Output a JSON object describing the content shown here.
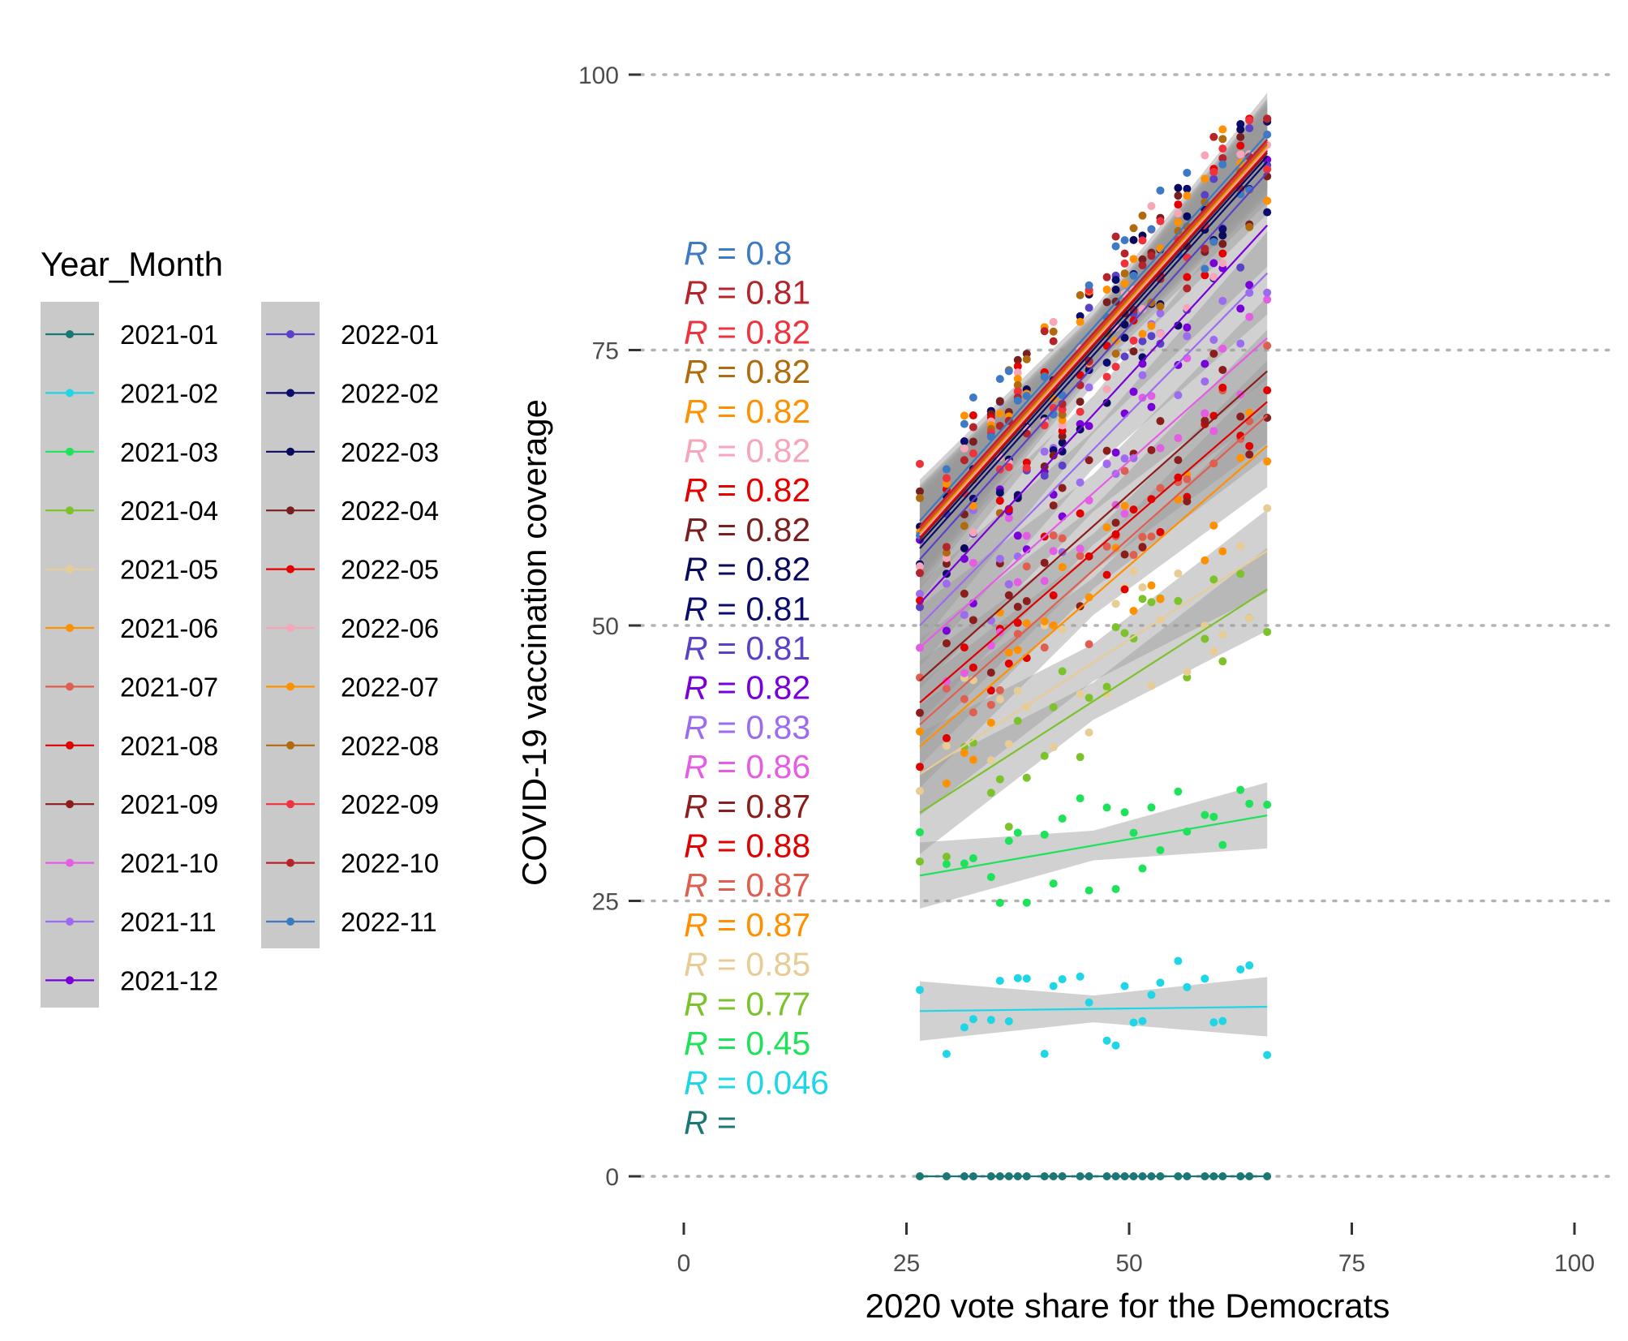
{
  "chart_data": {
    "type": "scatter",
    "title": "",
    "xlabel": "2020 vote share for the Democrats",
    "ylabel": "COVID-19 vaccination coverage",
    "xlim": [
      0,
      100
    ],
    "ylim": [
      0,
      100
    ],
    "x_ticks": [
      "0",
      "25",
      "50",
      "75",
      "100"
    ],
    "y_ticks": [
      "0",
      "25",
      "50",
      "75",
      "100"
    ],
    "grid": "horizontal dotted",
    "legend": {
      "title": "Year_Month",
      "placement": "left",
      "columns": 2
    },
    "x_range": [
      26.5,
      65.5
    ],
    "series": [
      {
        "name": "2021-01",
        "color": "#1b7773",
        "intercept": 0.0,
        "slope": 0.0,
        "r_label": "",
        "band": 0.2
      },
      {
        "name": "2021-02",
        "color": "#1fd6e6",
        "intercept": 15.0,
        "slope": 0.01,
        "r_label": "0.046",
        "band": 1.8
      },
      {
        "name": "2021-03",
        "color": "#1ee35a",
        "intercept": 27.3,
        "slope": 0.14,
        "r_label": "0.45",
        "band": 2.0
      },
      {
        "name": "2021-04",
        "color": "#7cc22b",
        "intercept": 33.0,
        "slope": 0.52,
        "r_label": "0.77",
        "band": 2.5
      },
      {
        "name": "2021-05",
        "color": "#e8cc96",
        "intercept": 36.5,
        "slope": 0.52,
        "r_label": "0.85",
        "band": 2.5
      },
      {
        "name": "2021-06",
        "color": "#ff9100",
        "intercept": 39.0,
        "slope": 0.7,
        "r_label": "0.87",
        "band": 2.5
      },
      {
        "name": "2021-07",
        "color": "#e05e50",
        "intercept": 41.0,
        "slope": 0.72,
        "r_label": "0.87",
        "band": 2.5
      },
      {
        "name": "2021-08",
        "color": "#e00000",
        "intercept": 43.0,
        "slope": 0.7,
        "r_label": "0.88",
        "band": 2.5
      },
      {
        "name": "2021-09",
        "color": "#8c1d1d",
        "intercept": 45.0,
        "slope": 0.72,
        "r_label": "0.87",
        "band": 2.5
      },
      {
        "name": "2021-10",
        "color": "#e55ce5",
        "intercept": 48.0,
        "slope": 0.72,
        "r_label": "0.86",
        "band": 2.5
      },
      {
        "name": "2021-11",
        "color": "#9b6cf0",
        "intercept": 50.0,
        "slope": 0.82,
        "r_label": "0.83",
        "band": 2.5
      },
      {
        "name": "2021-12",
        "color": "#7a00d9",
        "intercept": 52.0,
        "slope": 0.88,
        "r_label": "0.82",
        "band": 2.5
      },
      {
        "name": "2022-01",
        "color": "#5b41c8",
        "intercept": 56.0,
        "slope": 0.9,
        "r_label": "0.81",
        "band": 2.5
      },
      {
        "name": "2022-02",
        "color": "#0c0c6e",
        "intercept": 57.0,
        "slope": 0.9,
        "r_label": "0.81",
        "band": 2.5
      },
      {
        "name": "2022-03",
        "color": "#0a0a5c",
        "intercept": 57.5,
        "slope": 0.9,
        "r_label": "0.82",
        "band": 2.5
      },
      {
        "name": "2022-04",
        "color": "#7a1f1f",
        "intercept": 57.8,
        "slope": 0.9,
        "r_label": "0.82",
        "band": 2.5
      },
      {
        "name": "2022-05",
        "color": "#e60000",
        "intercept": 58.0,
        "slope": 0.9,
        "r_label": "0.82",
        "band": 2.5
      },
      {
        "name": "2022-06",
        "color": "#f7a6b9",
        "intercept": 58.2,
        "slope": 0.9,
        "r_label": "0.82",
        "band": 2.5
      },
      {
        "name": "2022-07",
        "color": "#ff9100",
        "intercept": 58.4,
        "slope": 0.9,
        "r_label": "0.82",
        "band": 2.5
      },
      {
        "name": "2022-08",
        "color": "#b06b0e",
        "intercept": 58.6,
        "slope": 0.9,
        "r_label": "0.82",
        "band": 2.5
      },
      {
        "name": "2022-09",
        "color": "#f0323c",
        "intercept": 58.8,
        "slope": 0.9,
        "r_label": "0.82",
        "band": 2.5
      },
      {
        "name": "2022-10",
        "color": "#b5242a",
        "intercept": 59.0,
        "slope": 0.9,
        "r_label": "0.81",
        "band": 2.5
      },
      {
        "name": "2022-11",
        "color": "#3e7ac4",
        "intercept": 59.5,
        "slope": 0.9,
        "r_label": "0.8",
        "band": 2.5
      }
    ],
    "x_points": [
      26.5,
      29.5,
      31.5,
      32.5,
      34.5,
      35.5,
      36.5,
      37.5,
      38.5,
      40.5,
      41.5,
      42.5,
      44.5,
      45.5,
      47.5,
      48.5,
      49.5,
      50.5,
      51.5,
      52.5,
      53.5,
      55.5,
      56.5,
      58.5,
      59.5,
      60.5,
      62.5,
      63.5,
      65.5
    ]
  }
}
